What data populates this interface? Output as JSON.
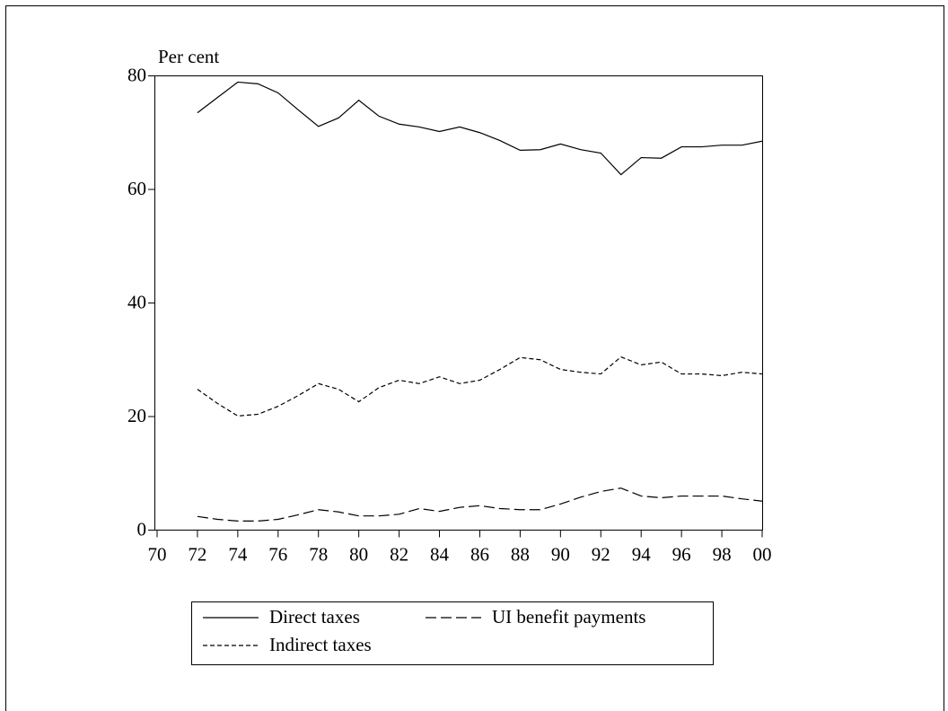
{
  "chart_data": {
    "type": "line",
    "y_label": "Per cent",
    "x": [
      1972,
      1973,
      1974,
      1975,
      1976,
      1977,
      1978,
      1979,
      1980,
      1981,
      1982,
      1983,
      1984,
      1985,
      1986,
      1987,
      1988,
      1989,
      1990,
      1991,
      1992,
      1993,
      1994,
      1995,
      1996,
      1997,
      1998,
      1999,
      2000
    ],
    "series": [
      {
        "name": "Direct taxes",
        "color": "#000000",
        "style": "solid",
        "values": [
          73.5,
          76.2,
          78.9,
          78.6,
          77.0,
          74.0,
          71.1,
          72.6,
          75.7,
          72.9,
          71.5,
          71.0,
          70.2,
          71.0,
          70.0,
          68.6,
          66.9,
          67.0,
          68.0,
          67.0,
          66.4,
          62.6,
          65.6,
          65.5,
          67.5,
          67.5,
          67.8,
          67.8,
          68.5
        ]
      },
      {
        "name": "UI benefit payments",
        "color": "#000000",
        "style": "long-dash",
        "values": [
          2.4,
          1.9,
          1.6,
          1.6,
          1.9,
          2.7,
          3.6,
          3.2,
          2.5,
          2.5,
          2.8,
          3.8,
          3.3,
          4.0,
          4.3,
          3.8,
          3.6,
          3.6,
          4.6,
          5.8,
          6.8,
          7.4,
          6.0,
          5.7,
          6.0,
          6.0,
          6.0,
          5.5,
          5.1
        ]
      },
      {
        "name": "Indirect taxes",
        "color": "#000000",
        "style": "short-dash",
        "values": [
          24.8,
          22.3,
          20.1,
          20.4,
          21.8,
          23.7,
          25.8,
          24.8,
          22.6,
          25.1,
          26.4,
          25.8,
          27.0,
          25.8,
          26.4,
          28.3,
          30.4,
          30.0,
          28.3,
          27.8,
          27.5,
          30.5,
          29.1,
          29.6,
          27.5,
          27.5,
          27.2,
          27.8,
          27.5
        ]
      }
    ],
    "xlim": [
      1970,
      2000
    ],
    "xticks": [
      {
        "value": 1970,
        "label": "70"
      },
      {
        "value": 1972,
        "label": "72"
      },
      {
        "value": 1974,
        "label": "74"
      },
      {
        "value": 1976,
        "label": "76"
      },
      {
        "value": 1978,
        "label": "78"
      },
      {
        "value": 1980,
        "label": "80"
      },
      {
        "value": 1982,
        "label": "82"
      },
      {
        "value": 1984,
        "label": "84"
      },
      {
        "value": 1986,
        "label": "86"
      },
      {
        "value": 1988,
        "label": "88"
      },
      {
        "value": 1990,
        "label": "90"
      },
      {
        "value": 1992,
        "label": "92"
      },
      {
        "value": 1994,
        "label": "94"
      },
      {
        "value": 1996,
        "label": "96"
      },
      {
        "value": 1998,
        "label": "98"
      },
      {
        "value": 2000,
        "label": "00"
      }
    ],
    "ylim": [
      0,
      80
    ],
    "yticks": [
      0,
      20,
      40,
      60,
      80
    ],
    "grid": false
  }
}
